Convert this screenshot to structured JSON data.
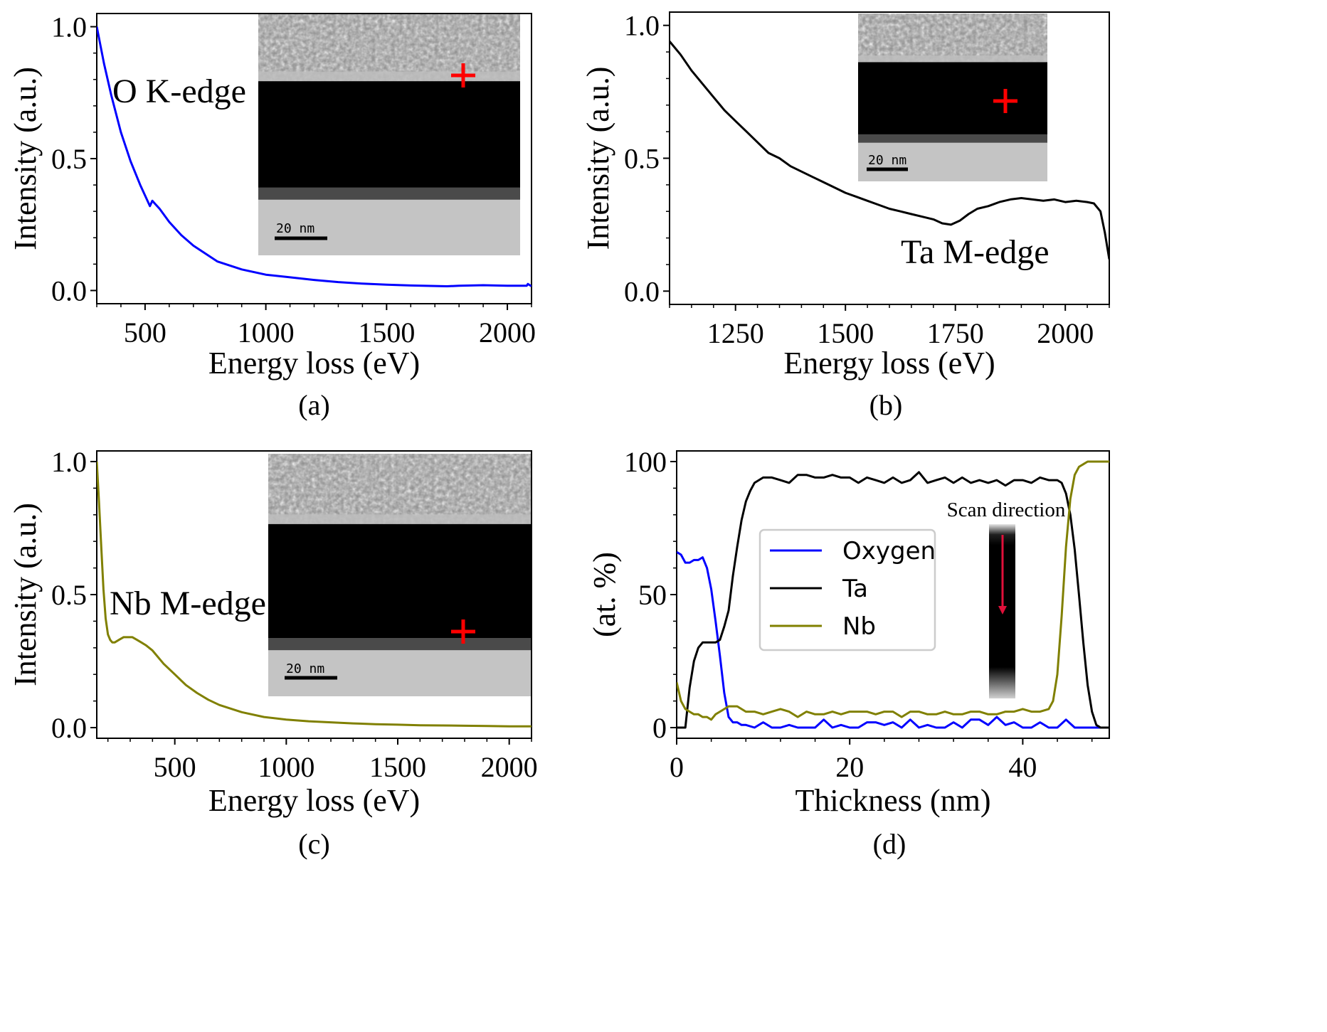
{
  "chart_data": [
    {
      "id": "a",
      "type": "line",
      "panel_label": "(a)",
      "xlabel": "Energy loss (eV)",
      "ylabel": "Intensity (a.u.)",
      "xlim": [
        300,
        2100
      ],
      "ylim": [
        -0.05,
        1.05
      ],
      "xticks": [
        500,
        1000,
        1500,
        2000
      ],
      "yticks": [
        0.0,
        0.5,
        1.0
      ],
      "ytick_labels": [
        "0.0",
        "0.5",
        "1.0"
      ],
      "annotation": "O K-edge",
      "inset_scalebar": "20 nm",
      "series": [
        {
          "color": "#0000ff",
          "x": [
            300,
            330,
            360,
            400,
            440,
            480,
            520,
            530,
            540,
            560,
            600,
            650,
            700,
            800,
            900,
            1000,
            1100,
            1200,
            1300,
            1400,
            1500,
            1600,
            1700,
            1750,
            1800,
            1900,
            2000,
            2080,
            2085,
            2100
          ],
          "y": [
            1.0,
            0.86,
            0.74,
            0.6,
            0.49,
            0.4,
            0.32,
            0.34,
            0.33,
            0.31,
            0.26,
            0.21,
            0.17,
            0.11,
            0.08,
            0.06,
            0.05,
            0.04,
            0.032,
            0.026,
            0.022,
            0.019,
            0.017,
            0.016,
            0.018,
            0.02,
            0.018,
            0.018,
            0.025,
            0.016
          ]
        }
      ]
    },
    {
      "id": "b",
      "type": "line",
      "panel_label": "(b)",
      "xlabel": "Energy loss (eV)",
      "ylabel": "Intensity (a.u.)",
      "xlim": [
        1100,
        2100
      ],
      "ylim": [
        -0.05,
        1.05
      ],
      "xticks": [
        1250,
        1500,
        1750,
        2000
      ],
      "yticks": [
        0.0,
        0.5,
        1.0
      ],
      "ytick_labels": [
        "0.0",
        "0.5",
        "1.0"
      ],
      "annotation": "Ta M-edge",
      "inset_scalebar": "20 nm",
      "series": [
        {
          "color": "#000000",
          "x": [
            1100,
            1125,
            1150,
            1175,
            1200,
            1225,
            1250,
            1275,
            1300,
            1325,
            1350,
            1375,
            1400,
            1425,
            1450,
            1475,
            1500,
            1525,
            1550,
            1575,
            1600,
            1625,
            1650,
            1675,
            1700,
            1720,
            1740,
            1760,
            1780,
            1800,
            1825,
            1850,
            1875,
            1900,
            1925,
            1950,
            1975,
            2000,
            2025,
            2050,
            2065,
            2080,
            2090,
            2100
          ],
          "y": [
            0.94,
            0.89,
            0.83,
            0.78,
            0.73,
            0.68,
            0.64,
            0.6,
            0.56,
            0.52,
            0.5,
            0.47,
            0.45,
            0.43,
            0.41,
            0.39,
            0.37,
            0.355,
            0.34,
            0.325,
            0.31,
            0.3,
            0.29,
            0.28,
            0.27,
            0.255,
            0.25,
            0.265,
            0.29,
            0.31,
            0.32,
            0.335,
            0.345,
            0.35,
            0.345,
            0.34,
            0.345,
            0.335,
            0.34,
            0.335,
            0.33,
            0.3,
            0.22,
            0.12
          ]
        }
      ]
    },
    {
      "id": "c",
      "type": "line",
      "panel_label": "(c)",
      "xlabel": "Energy loss (eV)",
      "ylabel": "Intensity (a.u.)",
      "xlim": [
        150,
        2100
      ],
      "ylim": [
        -0.04,
        1.04
      ],
      "xticks": [
        500,
        1000,
        1500,
        2000
      ],
      "yticks": [
        0.0,
        0.5,
        1.0
      ],
      "ytick_labels": [
        "0.0",
        "0.5",
        "1.0"
      ],
      "annotation": "Nb M-edge",
      "inset_scalebar": "20 nm",
      "series": [
        {
          "color": "#808000",
          "x": [
            150,
            160,
            170,
            180,
            190,
            200,
            210,
            220,
            230,
            250,
            270,
            290,
            310,
            330,
            350,
            370,
            400,
            450,
            500,
            550,
            600,
            650,
            700,
            800,
            900,
            1000,
            1100,
            1200,
            1300,
            1400,
            1500,
            1600,
            1700,
            1800,
            1900,
            2000,
            2100
          ],
          "y": [
            1.0,
            0.85,
            0.68,
            0.52,
            0.41,
            0.35,
            0.33,
            0.32,
            0.32,
            0.33,
            0.34,
            0.34,
            0.34,
            0.33,
            0.32,
            0.31,
            0.29,
            0.24,
            0.2,
            0.16,
            0.13,
            0.105,
            0.085,
            0.058,
            0.04,
            0.03,
            0.024,
            0.02,
            0.016,
            0.013,
            0.011,
            0.009,
            0.008,
            0.007,
            0.006,
            0.005,
            0.005
          ]
        }
      ]
    },
    {
      "id": "d",
      "type": "line",
      "panel_label": "(d)",
      "xlabel": "Thickness (nm)",
      "ylabel": "(at. %)",
      "xlim": [
        0,
        50
      ],
      "ylim": [
        -4,
        104
      ],
      "xticks": [
        0,
        20,
        40
      ],
      "yticks": [
        0,
        50,
        100
      ],
      "ytick_labels": [
        "0",
        "50",
        "100"
      ],
      "inset_title": "Scan direction",
      "legend_position": "center-left",
      "series": [
        {
          "name": "Oxygen",
          "color": "#0000ff",
          "x": [
            0,
            0.5,
            1,
            1.5,
            2,
            2.5,
            3,
            3.5,
            4,
            4.5,
            5,
            5.5,
            6,
            6.5,
            7,
            7.5,
            8,
            9,
            10,
            11,
            12,
            13,
            14,
            15,
            16,
            17,
            18,
            19,
            20,
            21,
            22,
            23,
            24,
            25,
            26,
            27,
            28,
            29,
            30,
            31,
            32,
            33,
            34,
            35,
            36,
            37,
            38,
            39,
            40,
            41,
            42,
            43,
            44,
            45,
            46,
            47,
            48,
            49,
            50
          ],
          "y": [
            66,
            65,
            62,
            62,
            63,
            63,
            64,
            60,
            52,
            40,
            27,
            13,
            4,
            2,
            2,
            1,
            1,
            0,
            2,
            0,
            0,
            1,
            0,
            0,
            0,
            3,
            0,
            1,
            0,
            0,
            2,
            2,
            1,
            2,
            0,
            3,
            0,
            1,
            0,
            0,
            2,
            0,
            3,
            3,
            1,
            4,
            1,
            2,
            0,
            0,
            2,
            0,
            0,
            3,
            0,
            0,
            0,
            0,
            0
          ]
        },
        {
          "name": "Ta",
          "color": "#000000",
          "x": [
            0,
            0.5,
            1,
            1.5,
            2,
            2.5,
            3,
            3.5,
            4,
            4.5,
            5,
            5.5,
            6,
            6.5,
            7,
            7.5,
            8,
            8.5,
            9,
            10,
            11,
            12,
            13,
            14,
            15,
            16,
            17,
            18,
            19,
            20,
            21,
            22,
            23,
            24,
            25,
            26,
            27,
            28,
            29,
            30,
            31,
            32,
            33,
            34,
            35,
            36,
            37,
            38,
            39,
            40,
            41,
            42,
            43,
            44,
            44.5,
            45,
            45.5,
            46,
            46.5,
            47,
            47.5,
            48,
            48.5,
            49,
            49.5,
            50
          ],
          "y": [
            0,
            0,
            0,
            15,
            25,
            30,
            32,
            32,
            32,
            32,
            33,
            38,
            44,
            57,
            68,
            78,
            85,
            89,
            92,
            94,
            94,
            93,
            92,
            95,
            95,
            94,
            94,
            95,
            94,
            94,
            92,
            94,
            93,
            92,
            94,
            92,
            93,
            96,
            92,
            93,
            94,
            92,
            94,
            92,
            93,
            92,
            93,
            91,
            93,
            93,
            92,
            94,
            93,
            93,
            92,
            88,
            80,
            67,
            50,
            32,
            16,
            6,
            1,
            0,
            0,
            0
          ]
        },
        {
          "name": "Nb",
          "color": "#808000",
          "x": [
            0,
            0.5,
            1,
            1.5,
            2,
            2.5,
            3,
            3.5,
            4,
            4.5,
            5,
            5.5,
            6,
            7,
            8,
            9,
            10,
            11,
            12,
            13,
            14,
            15,
            16,
            17,
            18,
            19,
            20,
            21,
            22,
            23,
            24,
            25,
            26,
            27,
            28,
            29,
            30,
            31,
            32,
            33,
            34,
            35,
            36,
            37,
            38,
            39,
            40,
            41,
            42,
            43,
            43.5,
            44,
            44.5,
            45,
            45.5,
            46,
            46.5,
            47,
            47.5,
            48,
            48.5,
            49,
            49.5,
            50
          ],
          "y": [
            17,
            10,
            7,
            6,
            5,
            5,
            4,
            4,
            3,
            5,
            6,
            7,
            8,
            8,
            6,
            6,
            5,
            6,
            7,
            6,
            4,
            6,
            5,
            5,
            6,
            5,
            6,
            6,
            6,
            5,
            6,
            6,
            4,
            6,
            6,
            5,
            5,
            6,
            5,
            5,
            6,
            6,
            5,
            5,
            6,
            6,
            7,
            6,
            6,
            7,
            10,
            20,
            42,
            68,
            86,
            95,
            98,
            99,
            100,
            100,
            100,
            100,
            100,
            100
          ]
        }
      ]
    }
  ]
}
